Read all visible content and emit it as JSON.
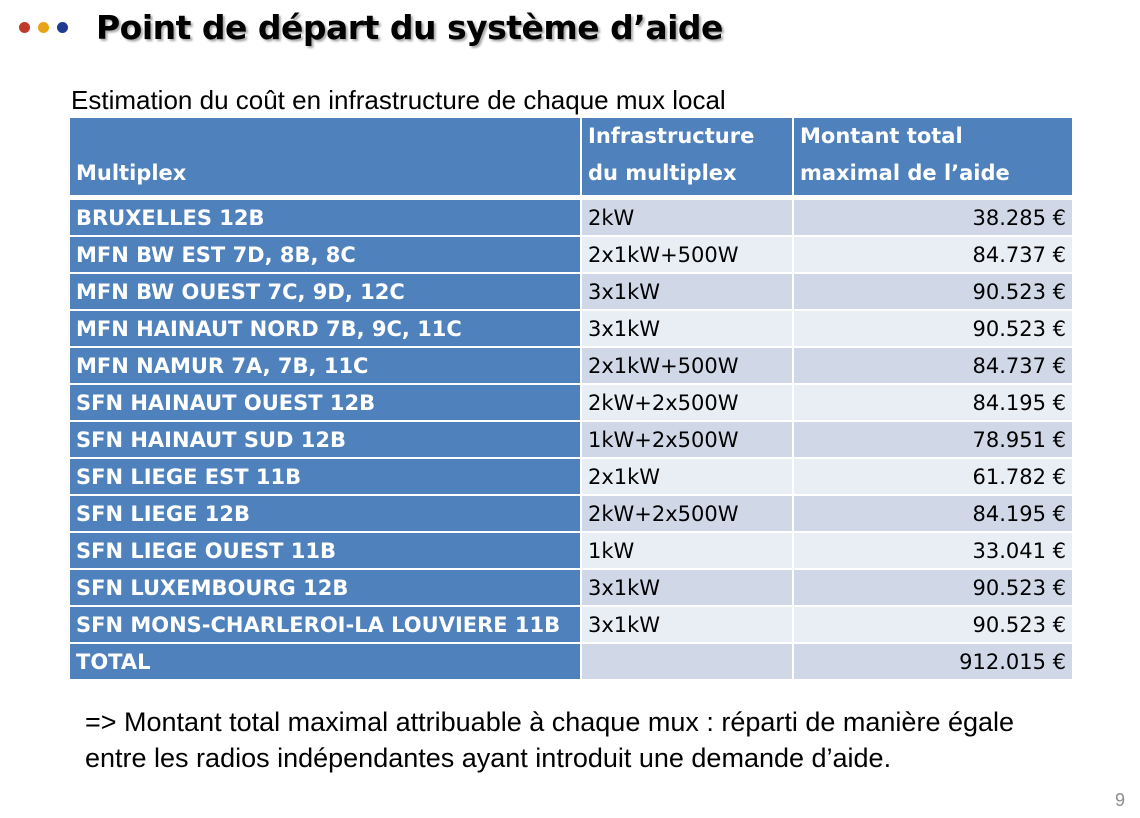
{
  "slide": {
    "title": "Point de départ du système d’aide",
    "subtitle": "Estimation du coût en infrastructure de chaque mux local",
    "bullet_colors": [
      "#c0392b",
      "#e8a317",
      "#1f3a93"
    ],
    "accent_color": "#4f81bd",
    "page_number": "9"
  },
  "table": {
    "headers": {
      "multiplex": "Multiplex",
      "infra": "Infrastructure du multiplex",
      "amount": "Montant total maximal de l’aide"
    },
    "rows": [
      {
        "name": "BRUXELLES 12B",
        "infra": "2kW",
        "amount": "38.285 €"
      },
      {
        "name": "MFN BW EST 7D, 8B, 8C",
        "infra": "2x1kW+500W",
        "amount": "84.737 €"
      },
      {
        "name": "MFN BW OUEST 7C, 9D, 12C",
        "infra": "3x1kW",
        "amount": "90.523 €"
      },
      {
        "name": "MFN HAINAUT NORD 7B, 9C, 11C",
        "infra": "3x1kW",
        "amount": "90.523 €"
      },
      {
        "name": "MFN NAMUR 7A, 7B, 11C",
        "infra": "2x1kW+500W",
        "amount": "84.737 €"
      },
      {
        "name": "SFN HAINAUT OUEST 12B",
        "infra": "2kW+2x500W",
        "amount": "84.195 €"
      },
      {
        "name": "SFN HAINAUT SUD 12B",
        "infra": "1kW+2x500W",
        "amount": "78.951 €"
      },
      {
        "name": "SFN LIEGE  EST 11B",
        "infra": "2x1kW",
        "amount": "61.782 €"
      },
      {
        "name": "SFN LIEGE 12B",
        "infra": "2kW+2x500W",
        "amount": "84.195 €"
      },
      {
        "name": "SFN LIEGE OUEST 11B",
        "infra": "1kW",
        "amount": "33.041 €"
      },
      {
        "name": "SFN LUXEMBOURG 12B",
        "infra": "3x1kW",
        "amount": "90.523 €"
      },
      {
        "name": "SFN MONS-CHARLEROI-LA LOUVIERE 11B",
        "infra": "3x1kW",
        "amount": "90.523 €"
      },
      {
        "name": "TOTAL",
        "infra": "",
        "amount": "912.015 €"
      }
    ]
  },
  "conclusion": "=> Montant total maximal attribuable à chaque mux : réparti de manière égale entre les radios indépendantes ayant introduit une demande d’aide."
}
